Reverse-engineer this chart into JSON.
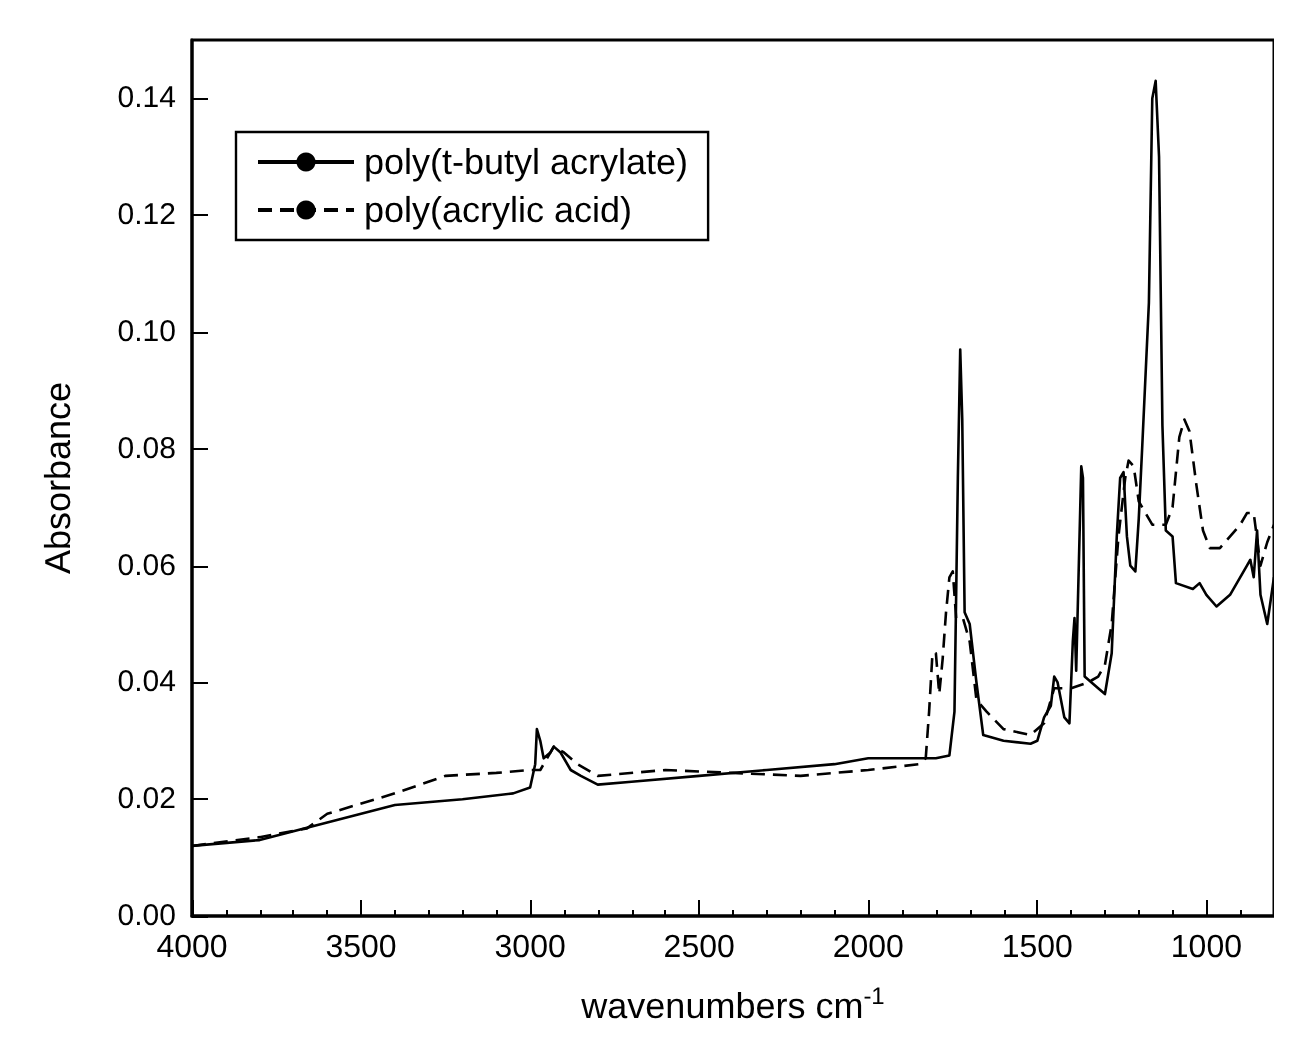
{
  "chart_data": {
    "type": "line",
    "xlabel": "wavenumbers cm$^{-1}$",
    "ylabel": "Absorbance",
    "xlim": [
      4000,
      800
    ],
    "xticks": [
      4000,
      3500,
      3000,
      2500,
      2000,
      1500,
      1000
    ],
    "ylim": [
      0,
      0.15
    ],
    "yticks": [
      {
        "value": 0,
        "label": "0.00"
      },
      {
        "value": 0.02,
        "label": "0.02"
      },
      {
        "value": 0.04,
        "label": "0.04"
      },
      {
        "value": 0.06,
        "label": "0.06"
      },
      {
        "value": 0.08,
        "label": "0.08"
      },
      {
        "value": 0.1,
        "label": "0.10"
      },
      {
        "value": 0.12,
        "label": "0.12"
      },
      {
        "value": 0.14,
        "label": "0.14"
      }
    ],
    "grid": false,
    "legend": "top left",
    "marker": "none",
    "series": [
      {
        "name": "poly(t-butyl acrylate)",
        "color": "#000000",
        "line_style": "solid",
        "x": [
          4000,
          3800,
          3600,
          3400,
          3200,
          3050,
          3000,
          2985,
          2980,
          2970,
          2960,
          2940,
          2930,
          2910,
          2880,
          2850,
          2800,
          2700,
          2500,
          2300,
          2100,
          2000,
          1800,
          1760,
          1745,
          1735,
          1728,
          1722,
          1715,
          1700,
          1680,
          1660,
          1600,
          1520,
          1500,
          1480,
          1460,
          1450,
          1440,
          1420,
          1405,
          1395,
          1390,
          1385,
          1370,
          1365,
          1360,
          1320,
          1300,
          1280,
          1265,
          1255,
          1245,
          1235,
          1225,
          1210,
          1200,
          1190,
          1170,
          1160,
          1150,
          1140,
          1130,
          1120,
          1100,
          1090,
          1040,
          1020,
          1000,
          970,
          930,
          880,
          870,
          860,
          850,
          840,
          820,
          800
        ],
        "values": [
          0.012,
          0.013,
          0.016,
          0.019,
          0.02,
          0.021,
          0.022,
          0.026,
          0.032,
          0.03,
          0.027,
          0.028,
          0.029,
          0.028,
          0.025,
          0.024,
          0.0225,
          0.023,
          0.024,
          0.025,
          0.026,
          0.027,
          0.027,
          0.0275,
          0.035,
          0.075,
          0.097,
          0.085,
          0.052,
          0.05,
          0.04,
          0.031,
          0.03,
          0.0295,
          0.03,
          0.034,
          0.036,
          0.041,
          0.04,
          0.034,
          0.033,
          0.047,
          0.051,
          0.042,
          0.077,
          0.075,
          0.041,
          0.039,
          0.038,
          0.045,
          0.065,
          0.075,
          0.076,
          0.065,
          0.06,
          0.059,
          0.068,
          0.08,
          0.105,
          0.14,
          0.143,
          0.13,
          0.084,
          0.066,
          0.065,
          0.057,
          0.056,
          0.057,
          0.055,
          0.053,
          0.055,
          0.06,
          0.061,
          0.058,
          0.066,
          0.055,
          0.05,
          0.058
        ]
      },
      {
        "name": "poly(acrylic acid)",
        "color": "#000000",
        "line_style": "dashed",
        "x": [
          4000,
          3800,
          3660,
          3600,
          3400,
          3250,
          3100,
          3000,
          2970,
          2930,
          2900,
          2860,
          2800,
          2600,
          2400,
          2200,
          2000,
          1850,
          1830,
          1820,
          1810,
          1800,
          1790,
          1780,
          1770,
          1760,
          1750,
          1740,
          1720,
          1700,
          1680,
          1650,
          1600,
          1520,
          1480,
          1450,
          1400,
          1350,
          1320,
          1300,
          1280,
          1260,
          1240,
          1230,
          1215,
          1200,
          1180,
          1160,
          1120,
          1100,
          1080,
          1065,
          1050,
          1030,
          1010,
          990,
          960,
          900,
          880,
          860,
          840,
          820,
          800
        ],
        "values": [
          0.012,
          0.0135,
          0.015,
          0.0175,
          0.021,
          0.024,
          0.0245,
          0.025,
          0.025,
          0.029,
          0.028,
          0.026,
          0.024,
          0.025,
          0.0245,
          0.024,
          0.025,
          0.026,
          0.027,
          0.035,
          0.045,
          0.045,
          0.038,
          0.044,
          0.052,
          0.058,
          0.059,
          0.051,
          0.051,
          0.047,
          0.037,
          0.035,
          0.032,
          0.031,
          0.033,
          0.039,
          0.039,
          0.04,
          0.041,
          0.043,
          0.05,
          0.065,
          0.075,
          0.078,
          0.077,
          0.071,
          0.069,
          0.067,
          0.067,
          0.07,
          0.082,
          0.085,
          0.083,
          0.074,
          0.066,
          0.063,
          0.063,
          0.067,
          0.069,
          0.069,
          0.06,
          0.064,
          0.067
        ]
      }
    ]
  }
}
